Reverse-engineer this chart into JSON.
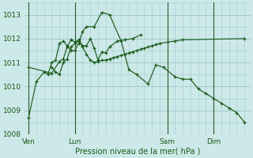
{
  "background_color": "#cde8e8",
  "grid_color": "#a0cccc",
  "line_color": "#1a5c1a",
  "ylim": [
    1008,
    1013.5
  ],
  "yticks": [
    1008,
    1009,
    1010,
    1011,
    1012,
    1013
  ],
  "xlabel": "Pression niveau de la mer( hPa )",
  "xtick_labels": [
    "Ven",
    "Lun",
    "Sam",
    "Dim"
  ],
  "xtick_positions": [
    0,
    24,
    72,
    96
  ],
  "vlines": [
    0,
    24,
    72,
    96
  ],
  "xlim": [
    -2,
    115
  ],
  "series": [
    {
      "x": [
        0,
        4,
        8,
        10,
        12,
        14,
        16,
        18,
        20,
        22,
        24,
        26,
        28,
        30,
        34,
        38,
        42,
        48,
        52,
        56,
        62,
        66,
        70,
        76,
        80,
        84,
        88,
        92,
        96,
        100,
        104,
        108,
        112
      ],
      "y": [
        1008.7,
        1010.2,
        1010.6,
        1010.5,
        1011.0,
        1011.1,
        1011.8,
        1011.9,
        1011.7,
        1011.5,
        1011.5,
        1011.8,
        1012.3,
        1012.5,
        1012.5,
        1013.1,
        1013.0,
        1011.9,
        1010.7,
        1010.5,
        1010.1,
        1010.9,
        1010.8,
        1010.4,
        1010.3,
        1010.3,
        1009.9,
        1009.7,
        1009.5,
        1009.3,
        1009.1,
        1008.9,
        1008.5
      ]
    },
    {
      "x": [
        12,
        14,
        16,
        18,
        20,
        22,
        24,
        26,
        28,
        30,
        32,
        34,
        36,
        38,
        40,
        42,
        46,
        50,
        54,
        58
      ],
      "y": [
        1010.8,
        1010.6,
        1010.5,
        1011.0,
        1011.15,
        1011.65,
        1011.8,
        1011.9,
        1011.7,
        1011.7,
        1012.0,
        1011.6,
        1011.1,
        1011.45,
        1011.4,
        1011.65,
        1011.9,
        1011.95,
        1012.0,
        1012.15
      ]
    },
    {
      "x": [
        0,
        12,
        16,
        18,
        20,
        22,
        24,
        26,
        28,
        30,
        32,
        34,
        36,
        38,
        40,
        42,
        44,
        46,
        48,
        50,
        52,
        54,
        56,
        58,
        60,
        62,
        64,
        66,
        68,
        72,
        76,
        80,
        112
      ],
      "y": [
        1010.8,
        1010.55,
        1011.05,
        1011.15,
        1011.65,
        1011.95,
        1011.85,
        1011.95,
        1011.65,
        1011.35,
        1011.1,
        1011.0,
        1011.05,
        1011.1,
        1011.1,
        1011.15,
        1011.2,
        1011.25,
        1011.3,
        1011.35,
        1011.4,
        1011.45,
        1011.5,
        1011.55,
        1011.6,
        1011.65,
        1011.7,
        1011.75,
        1011.8,
        1011.85,
        1011.9,
        1011.95,
        1012.0
      ]
    }
  ]
}
